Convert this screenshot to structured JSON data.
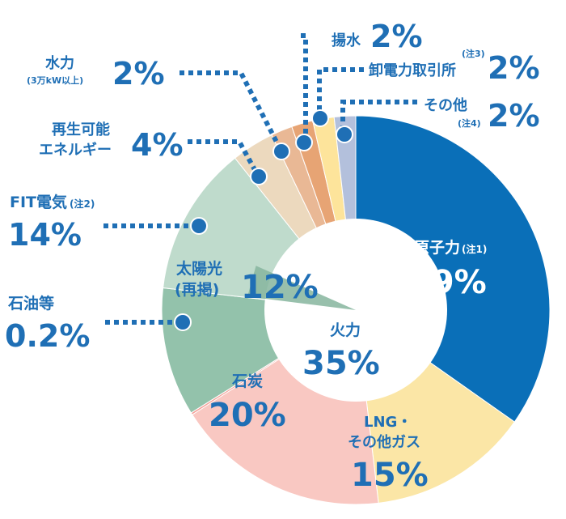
{
  "chart_data": {
    "type": "pie",
    "slices": [
      {
        "label": "原子力",
        "note": "(注1)",
        "value": 39,
        "display": "39%",
        "color": "#0a6fb8"
      },
      {
        "label": "LNG・その他ガス",
        "value": 15,
        "display": "15%",
        "color": "#fbe6a6"
      },
      {
        "label": "石炭",
        "value": 20,
        "display": "20%",
        "color": "#f9c8c2"
      },
      {
        "label": "石油等",
        "value": 0.2,
        "display": "0.2%",
        "color": "#f49e96"
      },
      {
        "label": "太陽光(再掲)",
        "value": 12,
        "display": "12%",
        "color": "#93c2ab"
      },
      {
        "label": "FIT電気",
        "note": "(注2)",
        "value": 14,
        "display": "14%",
        "color": "#bfdbcc"
      },
      {
        "label": "再生可能エネルギー",
        "value": 4,
        "display": "4%",
        "color": "#ecd9be"
      },
      {
        "label": "水力",
        "note": "(3万kW以上)",
        "value": 2,
        "display": "2%",
        "color": "#e9b895"
      },
      {
        "label": "揚水",
        "value": 2,
        "display": "2%",
        "color": "#e7a474"
      },
      {
        "label": "卸電力取引所",
        "note": "(注3)",
        "value": 2,
        "display": "2%",
        "color": "#fde49b"
      },
      {
        "label": "その他",
        "note": "(注4)",
        "value": 2,
        "display": "2%",
        "color": "#b3c0dc"
      }
    ],
    "group_label": {
      "label": "火力",
      "display": "35%"
    },
    "text": {
      "nuclear": "原子力",
      "nuclear_note": "(注1)",
      "nuclear_pct": "39%",
      "lng_1": "LNG・",
      "lng_2": "その他ガス",
      "lng_pct": "15%",
      "coal": "石炭",
      "coal_pct": "20%",
      "thermal": "火力",
      "thermal_pct": "35%",
      "oil": "石油等",
      "oil_pct": "0.2%",
      "solar_1": "太陽光",
      "solar_2": "(再掲)",
      "solar_pct": "12%",
      "fit": "FIT電気",
      "fit_note": "(注2)",
      "fit_pct": "14%",
      "renew_1": "再生可能",
      "renew_2": "エネルギー",
      "renew_pct": "4%",
      "hydro": "水力",
      "hydro_note": "(3万kW以上)",
      "hydro_pct": "2%",
      "pumped": "揚水",
      "pumped_pct": "2%",
      "exchange": "卸電力取引所",
      "exchange_note": "(注3)",
      "exchange_pct": "2%",
      "other": "その他",
      "other_note": "(注4)",
      "other_pct": "2%"
    },
    "colors": {
      "label": "#1f6fb5",
      "leader": "#1f6fb5"
    }
  }
}
